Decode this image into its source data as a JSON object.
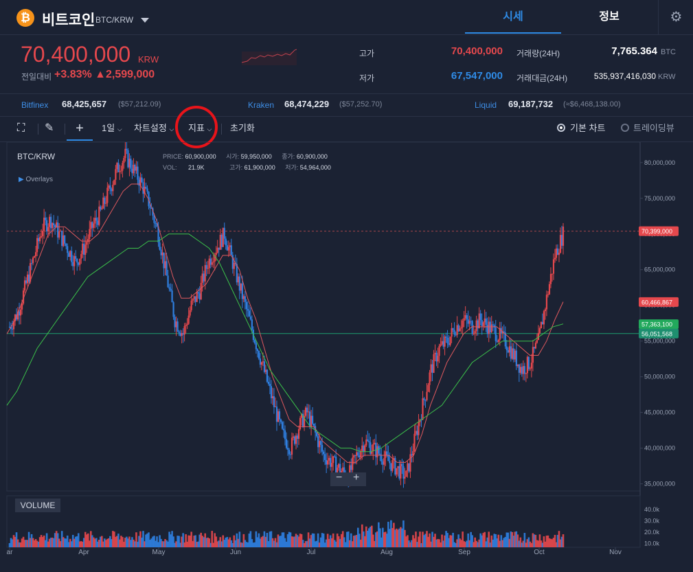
{
  "header": {
    "logo_glyph": "₿",
    "coin_name": "비트코인",
    "pair": "BTC/KRW",
    "tabs": [
      "시세",
      "정보"
    ],
    "settings_icon": "gear-icon"
  },
  "summary": {
    "price": "70,400,000",
    "currency": "KRW",
    "change_label": "전일대비",
    "change_pct": "+3.83%",
    "change_amount": "▲2,599,000",
    "high_label": "고가",
    "high": "70,400,000",
    "low_label": "저가",
    "low": "67,547,000",
    "volume_label": "거래량(24H)",
    "volume": "7,765.364",
    "volume_unit": "BTC",
    "turnover_label": "거래대금(24H)",
    "turnover": "535,937,416,030",
    "turnover_unit": "KRW"
  },
  "exchanges": [
    {
      "name": "Bitfinex",
      "price": "68,425,657",
      "usd": "($57,212.09)"
    },
    {
      "name": "Kraken",
      "price": "68,474,229",
      "usd": "($57,252.70)"
    },
    {
      "name": "Liquid",
      "price": "69,187,732",
      "usd": "(≈$6,468,138.00)"
    }
  ],
  "toolbar": {
    "interval": "1일",
    "chart_settings": "차트설정",
    "indicators": "지표",
    "reset": "초기화",
    "basic_chart": "기본 차트",
    "tradingview": "트레이딩뷰"
  },
  "chart": {
    "symbol": "BTC/KRW",
    "overlays": "Overlays",
    "ohlc": {
      "price_label": "PRICE:",
      "price": "60,900,000",
      "vol_label": "VOL:",
      "vol": "21.9K",
      "open_label": "시가:",
      "open": "59,950,000",
      "high_label": "고가:",
      "high": "61,900,000",
      "close_label": "종가:",
      "close": "60,900,000",
      "low_label": "저가:",
      "low": "54,964,000"
    },
    "volume_button": "VOLUME",
    "zoom_out": "−",
    "zoom_in": "+"
  },
  "chart_data": {
    "type": "line",
    "title": "BTC/KRW",
    "x_ticks": [
      "ar",
      "Apr",
      "May",
      "Jun",
      "Jul",
      "Aug",
      "Sep",
      "Oct",
      "Nov"
    ],
    "y_ticks": [
      "80,000,000",
      "75,000,000",
      "70,000,000",
      "65,000,000",
      "60,000,000",
      "55,000,000",
      "50,000,000",
      "45,000,000",
      "40,000,000",
      "35,000,000"
    ],
    "y_range": [
      34000000,
      82000000
    ],
    "volume_ticks": [
      "40.0k",
      "30.0k",
      "20.0k",
      "10.0k"
    ],
    "price_tags": [
      {
        "label": "70,399,000",
        "value": 70399000,
        "color": "#e5484d"
      },
      {
        "label": "60,466,867",
        "value": 60466867,
        "color": "#e5484d"
      },
      {
        "label": "57,363,100",
        "value": 57363100,
        "color": "#22a95c"
      },
      {
        "label": "56,051,568",
        "value": 56051568,
        "color": "#1e8f6f"
      }
    ],
    "horizontal_line": 56051568,
    "close_series_mil": [
      57,
      59,
      63,
      67,
      71,
      72,
      70,
      68,
      66,
      68,
      71,
      73,
      76,
      79,
      81,
      79,
      77,
      74,
      70,
      64,
      58,
      56,
      60,
      62,
      66,
      68,
      70,
      66,
      62,
      58,
      54,
      50,
      46,
      42,
      40,
      43,
      45,
      42,
      39,
      38,
      37,
      36,
      39,
      41,
      40,
      39,
      38,
      37,
      36,
      41,
      46,
      51,
      54,
      55,
      57,
      58,
      57,
      58,
      57,
      56,
      55,
      53,
      51,
      52,
      55,
      61,
      67,
      70
    ],
    "ma_short_mil": [
      56,
      58,
      61,
      64,
      67,
      70,
      71,
      71,
      70,
      69,
      69,
      70,
      72,
      74,
      76,
      77,
      77,
      75,
      72,
      68,
      64,
      61,
      61,
      62,
      63,
      65,
      67,
      67,
      65,
      61,
      58,
      54,
      50,
      47,
      44,
      43,
      43,
      43,
      41,
      40,
      39,
      38,
      38,
      39,
      39,
      39,
      39,
      38,
      38,
      39,
      42,
      46,
      49,
      52,
      54,
      56,
      57,
      57,
      57,
      57,
      56,
      55,
      54,
      53,
      53,
      55,
      58,
      60.5
    ],
    "ma_long_mil": [
      46,
      48,
      51,
      54,
      56,
      58,
      60,
      62,
      64,
      65,
      66,
      67,
      68,
      68,
      69,
      69,
      70,
      70,
      70,
      69,
      68,
      66,
      63,
      60,
      57,
      54,
      51,
      49,
      47,
      45,
      43,
      42,
      41,
      40,
      40,
      39.5,
      39.5,
      40,
      41,
      42,
      43,
      44,
      45,
      46,
      48,
      50,
      52,
      53,
      54,
      55,
      55,
      55,
      55,
      56,
      57,
      57.4
    ]
  }
}
